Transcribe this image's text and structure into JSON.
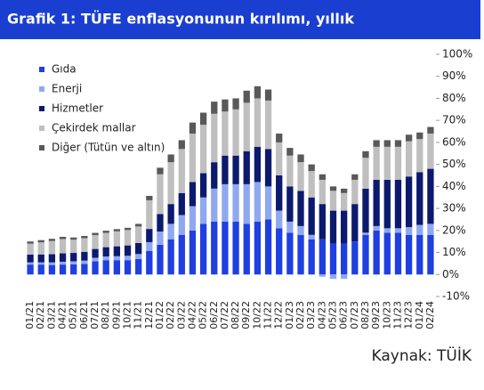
{
  "chart_data": {
    "type": "stacked_bar",
    "title": "Grafik 1: TÜFE enflasyonunun kırılımı, yıllık",
    "source": "Kaynak: TÜİK",
    "categories": [
      "01/21",
      "02/21",
      "03/21",
      "04/21",
      "05/21",
      "06/21",
      "07/21",
      "08/21",
      "09/21",
      "10/21",
      "11/21",
      "12/21",
      "01/22",
      "02/22",
      "03/22",
      "04/22",
      "05/22",
      "06/22",
      "07/22",
      "08/22",
      "09/22",
      "10/22",
      "11/22",
      "12/22",
      "01/23",
      "02/23",
      "03/23",
      "04/23",
      "05/23",
      "06/23",
      "07/23",
      "08/23",
      "09/23",
      "10/23",
      "11/23",
      "12/23",
      "01/24",
      "02/24"
    ],
    "series": [
      {
        "name": "Gıda",
        "color": "#1f3fe0",
        "values": [
          4.5,
          4.5,
          4.3,
          4.5,
          4.6,
          4.8,
          6,
          6.5,
          6.5,
          6.5,
          7,
          10.7,
          13.5,
          16,
          18,
          20,
          23,
          24,
          24,
          24,
          23,
          24,
          25,
          21,
          19,
          18,
          16,
          16,
          14,
          14,
          15,
          18,
          20,
          19,
          19,
          18,
          18,
          18
        ]
      },
      {
        "name": "Enerji",
        "color": "#8fa8f0",
        "values": [
          1,
          1,
          1.2,
          1.3,
          1.4,
          1.5,
          1.6,
          1.7,
          1.8,
          2,
          2.3,
          4,
          6,
          7,
          9,
          11,
          12,
          15,
          17,
          17,
          18,
          18,
          15,
          8,
          5,
          4,
          2,
          -1,
          -2,
          -2,
          0,
          1,
          2,
          2,
          2,
          3.5,
          4.5,
          5
        ]
      },
      {
        "name": "Hizmetler",
        "color": "#0c1a6e",
        "values": [
          3.5,
          3.6,
          3.7,
          3.8,
          3.8,
          4,
          4,
          4.2,
          4.5,
          4.7,
          5,
          6,
          8,
          9,
          10,
          11,
          11,
          12,
          13,
          13,
          15,
          16,
          17,
          16,
          16,
          16,
          17,
          16,
          15,
          15,
          17,
          20,
          21,
          22,
          22,
          23,
          24,
          25
        ]
      },
      {
        "name": "Çekirdek mallar",
        "color": "#bfbfbf",
        "values": [
          5,
          5.5,
          6,
          6.5,
          6,
          6.2,
          6.3,
          6.5,
          6.8,
          7,
          7.5,
          13,
          18,
          19,
          20,
          22,
          22,
          22,
          20,
          21,
          22,
          22,
          22,
          15,
          14,
          13,
          12,
          11,
          9,
          8,
          11,
          14,
          15,
          15,
          15,
          16,
          15,
          16
        ]
      },
      {
        "name": "Diğer (Tütün ve altın)",
        "color": "#595959",
        "values": [
          1,
          1,
          1,
          1,
          1,
          1,
          1,
          1,
          1,
          1,
          1.2,
          2,
          3,
          3.5,
          4,
          5,
          5.5,
          5.5,
          5.5,
          5,
          5.5,
          5.5,
          5,
          4,
          3.5,
          3.5,
          3,
          2.5,
          2,
          2,
          2.5,
          3,
          3,
          3,
          3,
          3,
          3,
          3
        ]
      }
    ],
    "ylim": [
      -10,
      100
    ],
    "yticks": [
      {
        "value": -10,
        "label": "-10%"
      },
      {
        "value": 0,
        "label": "0%"
      },
      {
        "value": 10,
        "label": "10%"
      },
      {
        "value": 20,
        "label": "20%"
      },
      {
        "value": 30,
        "label": "30%"
      },
      {
        "value": 40,
        "label": "40%"
      },
      {
        "value": 50,
        "label": "50%"
      },
      {
        "value": 60,
        "label": "60%"
      },
      {
        "value": 70,
        "label": "70%"
      },
      {
        "value": 80,
        "label": "80%"
      },
      {
        "value": 90,
        "label": "90%"
      },
      {
        "value": 100,
        "label": "100%"
      }
    ],
    "grid": false,
    "legend": "top-left"
  }
}
